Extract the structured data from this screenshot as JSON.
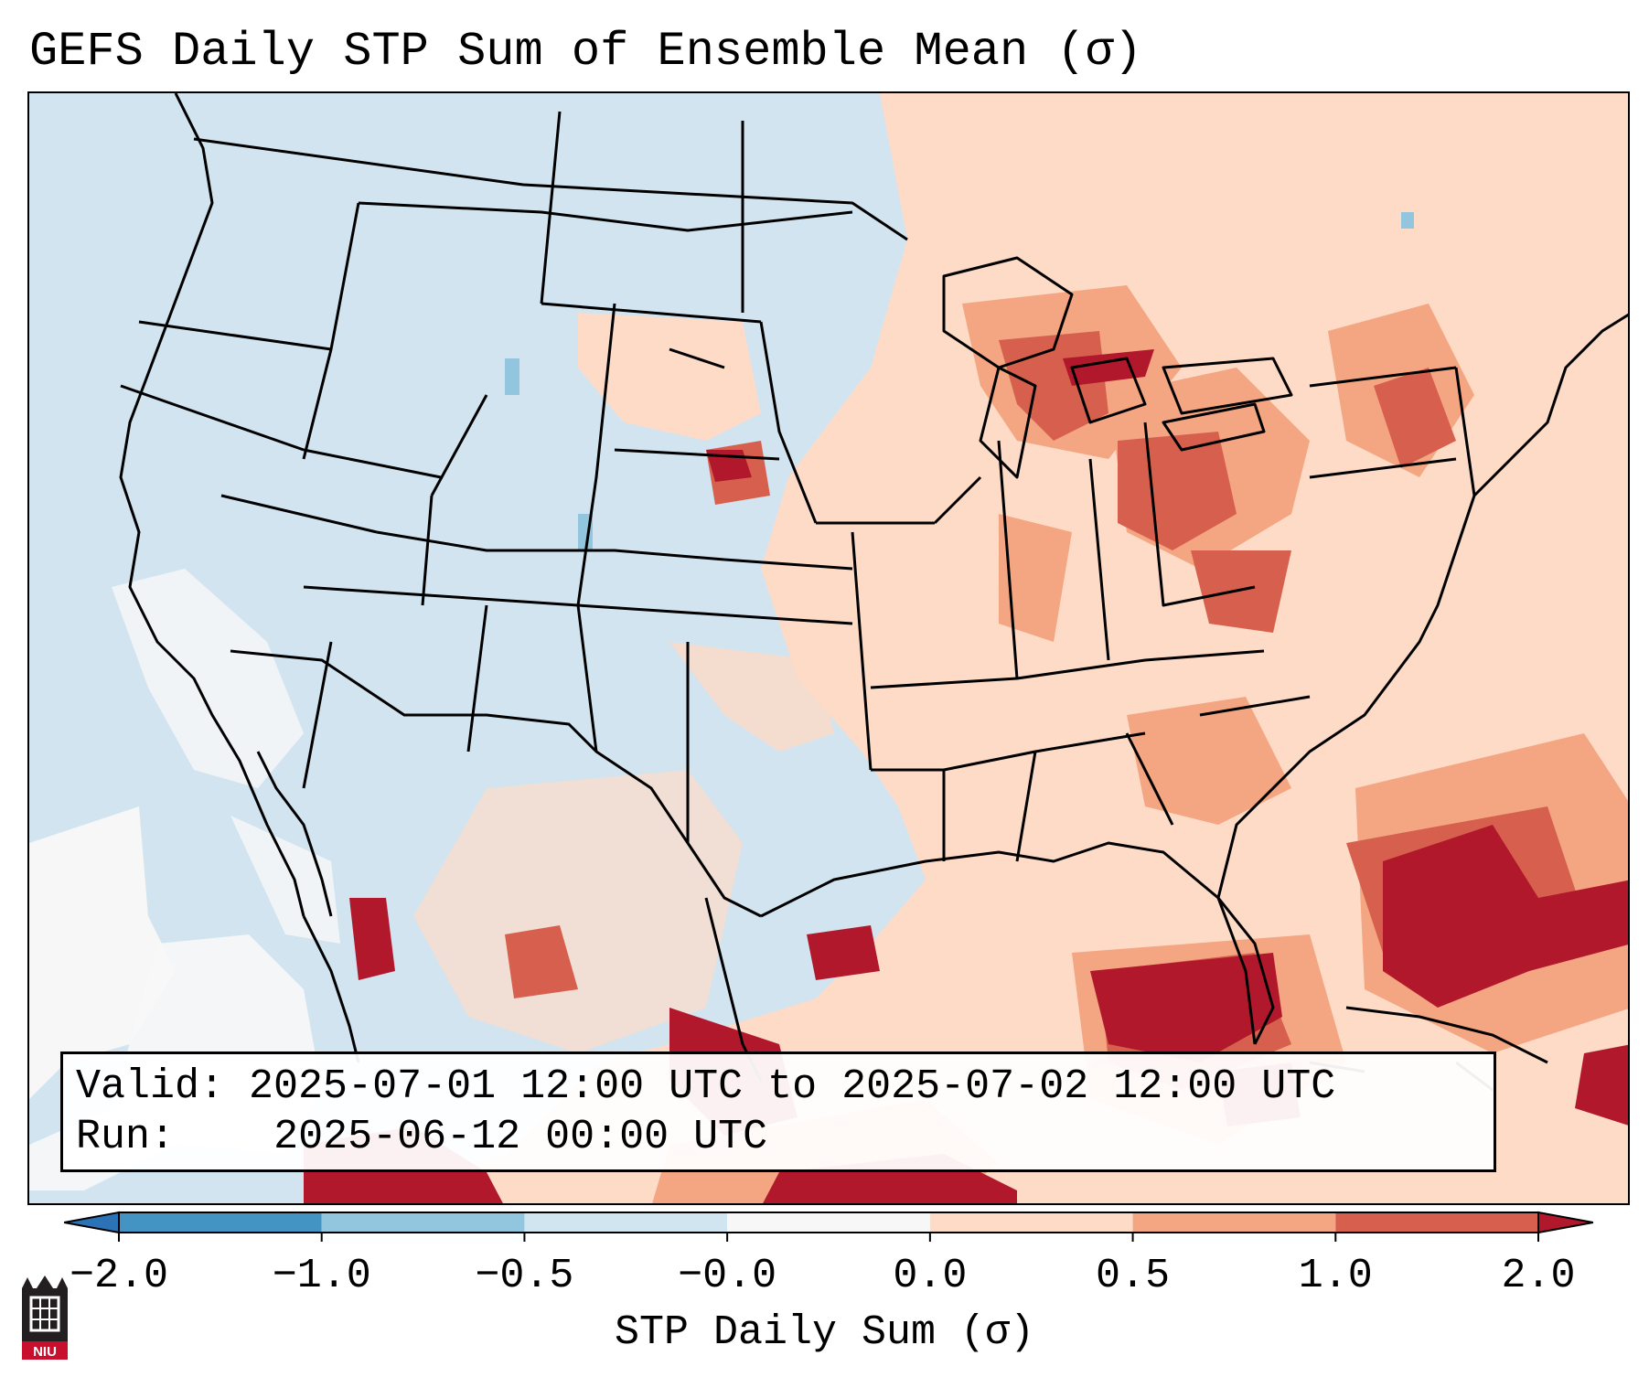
{
  "title": "GEFS Daily STP Sum of Ensemble Mean (σ)",
  "info": {
    "valid_label": "Valid:",
    "valid_value": "2025-07-01 12:00 UTC to 2025-07-02 12:00 UTC",
    "run_label": "Run:",
    "run_value": "2025-06-12 00:00 UTC"
  },
  "colorbar": {
    "label": "STP Daily Sum (σ)",
    "ticks": [
      "−2.0",
      "−1.0",
      "−0.5",
      "−0.0",
      "0.0",
      "0.5",
      "1.0",
      "2.0"
    ],
    "colors": [
      "#2c72b6",
      "#4393c3",
      "#92c5de",
      "#d1e5f0",
      "#f7f7f7",
      "#fddbc7",
      "#f4a582",
      "#d6604d",
      "#b2182b"
    ],
    "extend": "both"
  },
  "map": {
    "ocean_color": "#d2e4f0",
    "land_color": "#d2e4f0",
    "projection": "Lambert conformal, CONUS"
  },
  "logo": {
    "text": "NIU",
    "icon": "niu-logo-icon"
  }
}
